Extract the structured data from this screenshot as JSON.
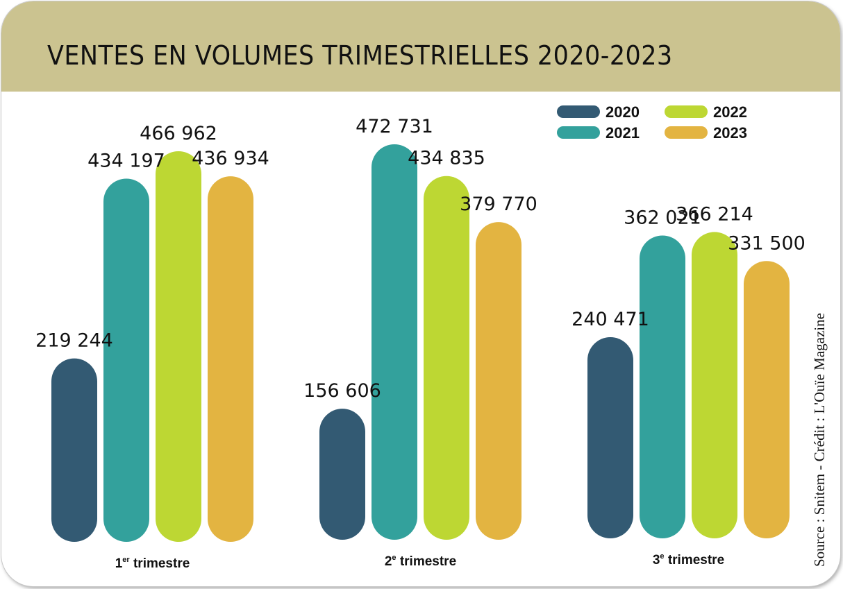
{
  "chart_data": {
    "type": "bar",
    "title": "VENTES EN VOLUMES TRIMESTRIELLES 2020-2023",
    "categories": [
      {
        "label": "1",
        "sup": "er",
        "rest": " trimestre"
      },
      {
        "label": "2",
        "sup": "e",
        "rest": " trimestre"
      },
      {
        "label": "3",
        "sup": "e",
        "rest": " trimestre"
      }
    ],
    "series": [
      {
        "name": "2020",
        "color": "#335a73",
        "values": [
          219244,
          156606,
          240471
        ],
        "labels": [
          "219 244",
          "156 606",
          "240 471"
        ]
      },
      {
        "name": "2021",
        "color": "#33a19c",
        "values": [
          434197,
          472731,
          362021
        ],
        "labels": [
          "434 197",
          "472 731",
          "362 021"
        ]
      },
      {
        "name": "2022",
        "color": "#bdd733",
        "values": [
          466962,
          434835,
          366214
        ],
        "labels": [
          "466 962",
          "434 835",
          "366 214"
        ]
      },
      {
        "name": "2023",
        "color": "#e3b441",
        "values": [
          436934,
          379770,
          331500
        ],
        "labels": [
          "436 934",
          "379 770",
          "331 500"
        ]
      }
    ],
    "xlabel": "",
    "ylabel": "",
    "grid": false,
    "legend_position": "top-right",
    "source": "Source : Snitem - Crédit : L'Ouïe Magazine"
  }
}
